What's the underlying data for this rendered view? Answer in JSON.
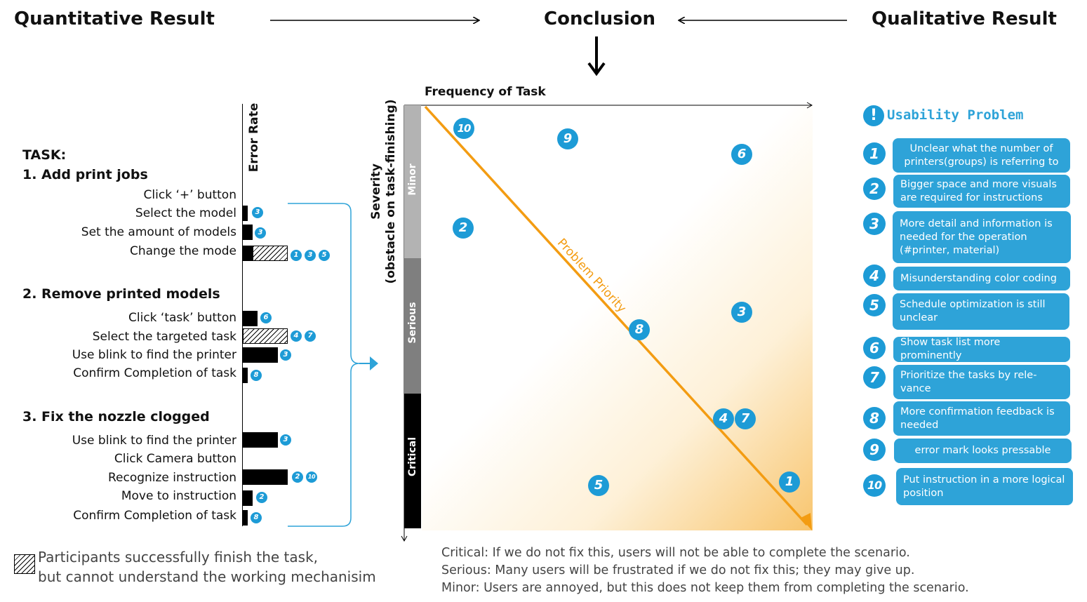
{
  "header": {
    "quantitative": "Quantitative Result",
    "conclusion": "Conclusion",
    "qualitative": "Qualitative Result"
  },
  "tasks": {
    "heading": "TASK:",
    "error_rate_label": "Error Rate",
    "sections": [
      {
        "title": "1. Add print jobs",
        "steps": [
          "Click ‘+’ button",
          "Select the model",
          "Set the amount of models",
          "Change the mode"
        ]
      },
      {
        "title": "2. Remove printed models",
        "steps": [
          "Click ‘task’ button",
          "Select the targeted task",
          "Use blink to find the printer",
          "Confirm Completion of task"
        ]
      },
      {
        "title": "3. Fix the nozzle clogged",
        "steps": [
          "Use blink to find the printer",
          "Click Camera button",
          "Recognize instruction",
          "Move to instruction",
          "Confirm Completion of task"
        ]
      }
    ],
    "step_problems": [
      [
        "3"
      ],
      [
        "3"
      ],
      [
        "1",
        "3",
        "5"
      ],
      [
        "6"
      ],
      [
        "4",
        "7"
      ],
      [
        "3"
      ],
      [
        "8"
      ],
      [
        "3"
      ],
      [
        "2",
        "10"
      ],
      [
        "2"
      ],
      [
        "8"
      ]
    ]
  },
  "matrix": {
    "x_label": "Frequency of Task",
    "y_label_line1": "Severity",
    "y_label_line2": "(obstacle on task-finishing)",
    "severity_levels": [
      "Minor",
      "Serious",
      "Critical"
    ],
    "priority_label": "Problem Priority",
    "points": [
      "10",
      "9",
      "6",
      "2",
      "3",
      "8",
      "4",
      "7",
      "5",
      "1"
    ]
  },
  "problems": {
    "title": "Usability Problem",
    "title_icon": "!",
    "items": [
      {
        "num": "1",
        "text": "Unclear what the number of printers(groups) is referring to"
      },
      {
        "num": "2",
        "text": "Bigger space and more visuals are required for instructions"
      },
      {
        "num": "3",
        "text": "More detail and information is needed for the operation (#printer, material)"
      },
      {
        "num": "4",
        "text": "Misunderstanding color coding"
      },
      {
        "num": "5",
        "text": "Schedule optimization is still unclear"
      },
      {
        "num": "6",
        "text": "Show task list more prominently"
      },
      {
        "num": "7",
        "text": "Prioritize the tasks by rele- vance"
      },
      {
        "num": "8",
        "text": "More confirmation feedback is needed"
      },
      {
        "num": "9",
        "text": "error mark looks pressable"
      },
      {
        "num": "10",
        "text": "Put instruction in a more logical position"
      }
    ]
  },
  "legend": {
    "hatch_line1": "Participants successfully finish the task,",
    "hatch_line2": "but cannot understand the working mechanisim",
    "critical": "Critical:  If we do not fix this, users will not be able to complete the scenario.",
    "serious": "Serious:  Many users will be frustrated if we do not fix this; they may give up.",
    "minor": "Minor:  Users are annoyed, but this does not keep them from completing the scenario."
  },
  "colors": {
    "accent_blue": "#1d9bd6",
    "priority_orange": "#f39c12",
    "minor_gray": "#b3b3b3",
    "serious_gray": "#7f7f7f",
    "critical_black": "#000000"
  }
}
